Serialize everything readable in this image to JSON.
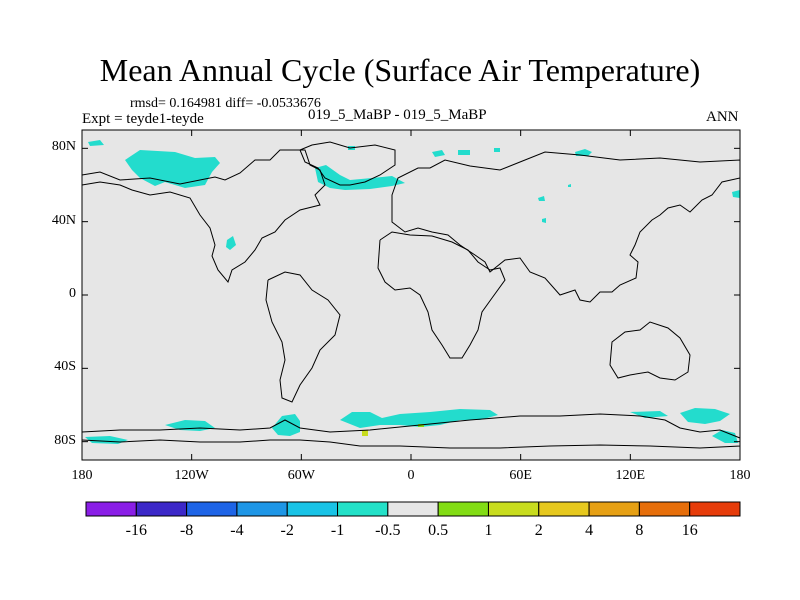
{
  "title": "Mean Annual Cycle (Surface Air Temperature)",
  "stats_line": "rmsd= 0.164981 diff= -0.0533676",
  "experiment_label": "Expt = teyde1-teyde",
  "center_label": "019_5_MaBP - 019_5_MaBP",
  "season_label": "ANN",
  "colors": {
    "land_outline": "#000000",
    "background_field": "#e6e6e6"
  },
  "axes": {
    "lon_range": [
      -180,
      180
    ],
    "lat_range": [
      -90,
      90
    ],
    "y_ticks": [
      {
        "value": 80,
        "label": "80N"
      },
      {
        "value": 40,
        "label": "40N"
      },
      {
        "value": 0,
        "label": "0"
      },
      {
        "value": -40,
        "label": "40S"
      },
      {
        "value": -80,
        "label": "80S"
      }
    ],
    "x_ticks": [
      {
        "value": -180,
        "label": "180"
      },
      {
        "value": -120,
        "label": "120W"
      },
      {
        "value": -60,
        "label": "60W"
      },
      {
        "value": 0,
        "label": "0"
      },
      {
        "value": 60,
        "label": "60E"
      },
      {
        "value": 120,
        "label": "120E"
      },
      {
        "value": 180,
        "label": "180"
      }
    ]
  },
  "colorbar": {
    "boxes": [
      "#8a1ee6",
      "#3c28c8",
      "#1e64e6",
      "#1e96e6",
      "#19c3e6",
      "#23e1c8",
      "#e6e6e6",
      "#82dc14",
      "#c8dc1e",
      "#e6c81e",
      "#e6a014",
      "#e66e0a",
      "#e63c0a"
    ],
    "labels": [
      "-16",
      "-8",
      "-4",
      "-2",
      "-1",
      "-0.5",
      "0.5",
      "1",
      "2",
      "4",
      "8",
      "16"
    ]
  }
}
